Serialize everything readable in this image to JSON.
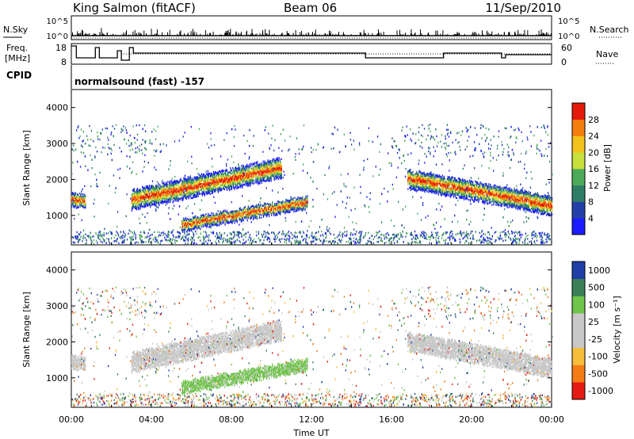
{
  "header": {
    "station": "King Salmon (fitACF)",
    "beam": "Beam 06",
    "date": "11/Sep/2010"
  },
  "top_panel": {
    "left_label": "N.Sky",
    "right_label": "N.Search",
    "left_ticks": [
      "10^5",
      "10^0"
    ],
    "right_ticks": [
      "10^5",
      "10^0"
    ]
  },
  "freq_panel": {
    "left_label_1": "Freq.",
    "left_label_2": "[MHz]",
    "right_label": "Nave",
    "left_ticks": [
      "18",
      "8"
    ],
    "right_ticks": [
      "60",
      "0"
    ]
  },
  "cpid": {
    "label": "CPID",
    "value": "normalsound (fast) -157"
  },
  "colors": {
    "power": [
      "#1c1cff",
      "#2340a8",
      "#2e7d66",
      "#4cab5a",
      "#c8e03c",
      "#f2c21c",
      "#f57d0c",
      "#e41a0c"
    ],
    "velocity": [
      "#e51a12",
      "#f47b16",
      "#f6be3a",
      "#c8c8c8",
      "#c8c8c8",
      "#6fc44a",
      "#3a7f58",
      "#1f3ea8"
    ]
  },
  "chart_data": [
    {
      "type": "heatmap",
      "ylabel": "Slant Range [km]",
      "yticks": [
        1000,
        2000,
        3000,
        4000
      ],
      "ylim": [
        180,
        4500
      ],
      "xlim": [
        0,
        24
      ],
      "colorbar": {
        "label": "Power [dB]",
        "ticks": [
          "4",
          "8",
          "12",
          "16",
          "20",
          "24",
          "28"
        ]
      },
      "features": [
        {
          "name": "band_early",
          "x": [
            0.0,
            0.7
          ],
          "y_start": 1400,
          "y_end": 1400,
          "width": 380
        },
        {
          "name": "band_upper",
          "x": [
            3.0,
            10.5
          ],
          "y_start": 1400,
          "y_end": 2300,
          "width": 550
        },
        {
          "name": "band_lower",
          "x": [
            5.5,
            11.8
          ],
          "y_start": 700,
          "y_end": 1350,
          "width": 340
        },
        {
          "name": "band_evening",
          "x": [
            16.8,
            24.0
          ],
          "y_start": 2000,
          "y_end": 1250,
          "width": 520
        }
      ]
    },
    {
      "type": "heatmap",
      "ylabel": "Slant Range [km]",
      "xlabel": "Time UT",
      "yticks": [
        1000,
        2000,
        3000,
        4000
      ],
      "ylim": [
        180,
        4500
      ],
      "xlim": [
        0,
        24
      ],
      "xticks": [
        "00:00",
        "04:00",
        "08:00",
        "12:00",
        "16:00",
        "20:00",
        "00:00"
      ],
      "colorbar": {
        "label": "Velocity [m s⁻¹]",
        "ticks": [
          "1000",
          "500",
          "100",
          "25",
          "-25",
          "-100",
          "-500",
          "-1000"
        ]
      }
    }
  ]
}
